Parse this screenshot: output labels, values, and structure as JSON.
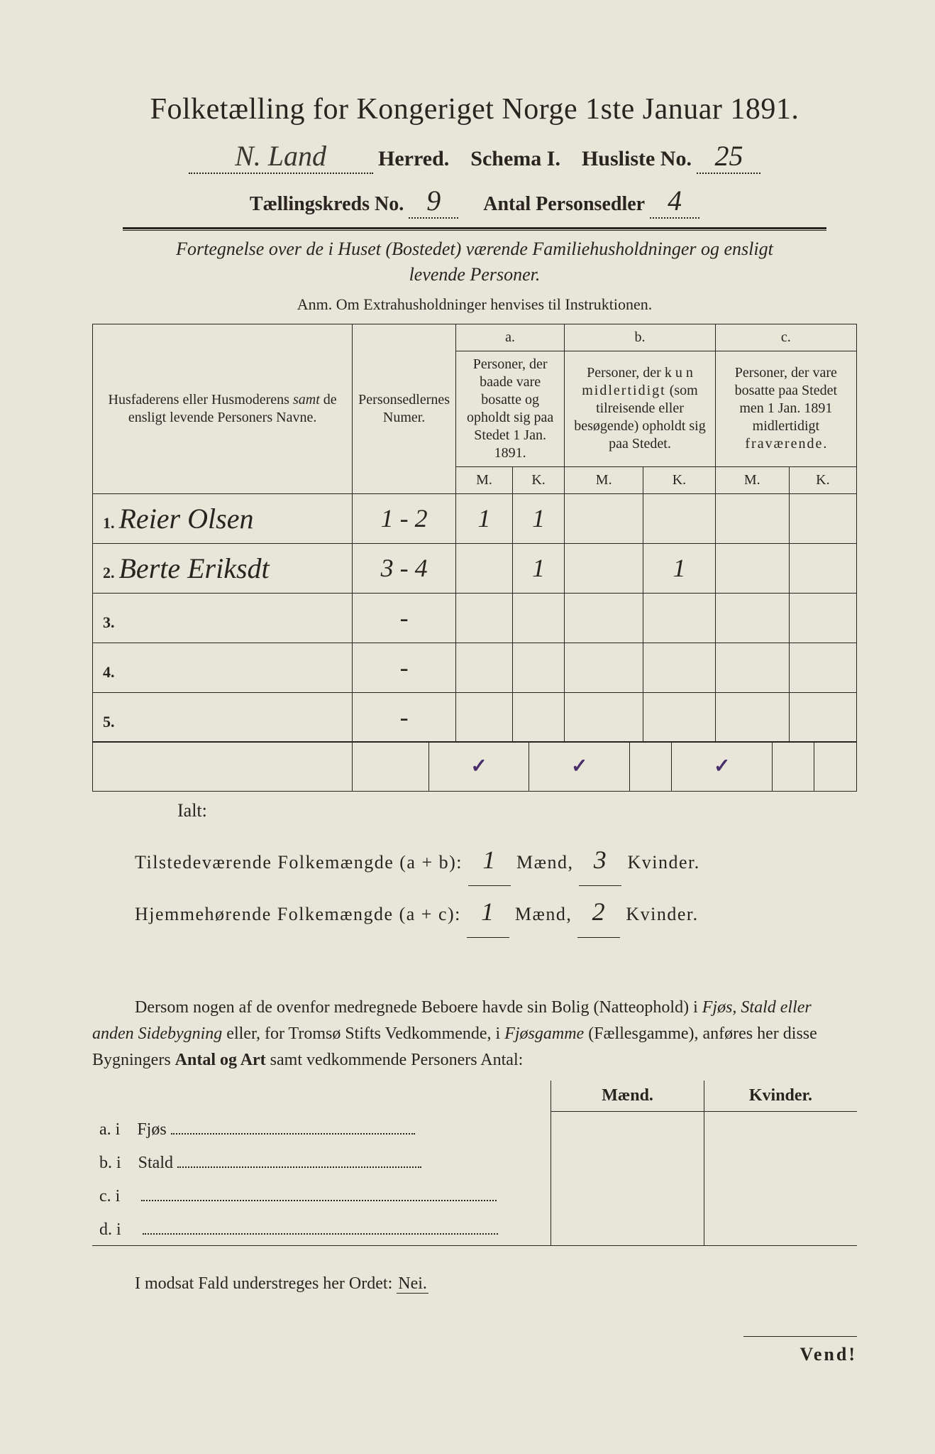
{
  "header": {
    "title": "Folketælling for Kongeriget Norge 1ste Januar 1891.",
    "herred_value": "N. Land",
    "herred_label": "Herred.",
    "schema_label": "Schema I.",
    "husliste_label": "Husliste No.",
    "husliste_no": "25",
    "kreds_label": "Tællingskreds No.",
    "kreds_no": "9",
    "antal_label": "Antal Personsedler",
    "antal_value": "4"
  },
  "subtitle": {
    "line1": "Fortegnelse over de i Huset (Bostedet) værende Familiehusholdninger og ensligt",
    "line2": "levende Personer.",
    "anm": "Anm. Om Extrahusholdninger henvises til Instruktionen."
  },
  "table": {
    "col_names": "Husfaderens eller Husmoderens samt de ensligt levende Personers Navne.",
    "col_numer": "Personsedlernes Numer.",
    "col_a_label": "a.",
    "col_a_text": "Personer, der baade vare bosatte og opholdt sig paa Stedet 1 Jan. 1891.",
    "col_b_label": "b.",
    "col_b_text": "Personer, der kun midlertidigt (som tilreisende eller besøgende) opholdt sig paa Stedet.",
    "col_c_label": "c.",
    "col_c_text": "Personer, der vare bosatte paa Stedet men 1 Jan. 1891 midlertidigt fraværende.",
    "m": "M.",
    "k": "K.",
    "rows": [
      {
        "idx": "1.",
        "name": "Reier Olsen",
        "numer": "1 - 2",
        "a_m": "1",
        "a_k": "1",
        "b_m": "",
        "b_k": "",
        "c_m": "",
        "c_k": ""
      },
      {
        "idx": "2.",
        "name": "Berte Eriksdt",
        "numer": "3 - 4",
        "a_m": "",
        "a_k": "1",
        "b_m": "",
        "b_k": "1",
        "c_m": "",
        "c_k": ""
      },
      {
        "idx": "3.",
        "name": "",
        "numer": "-",
        "a_m": "",
        "a_k": "",
        "b_m": "",
        "b_k": "",
        "c_m": "",
        "c_k": ""
      },
      {
        "idx": "4.",
        "name": "",
        "numer": "-",
        "a_m": "",
        "a_k": "",
        "b_m": "",
        "b_k": "",
        "c_m": "",
        "c_k": ""
      },
      {
        "idx": "5.",
        "name": "",
        "numer": "-",
        "a_m": "",
        "a_k": "",
        "b_m": "",
        "b_k": "",
        "c_m": "",
        "c_k": ""
      }
    ],
    "ticks": {
      "a_m": "✓",
      "a_k": "✓",
      "b_k": "✓"
    }
  },
  "totals": {
    "ialt": "Ialt:",
    "line1_label": "Tilstedeværende Folkemængde (a + b):",
    "line1_m": "1",
    "line1_k": "3",
    "line2_label": "Hjemmehørende Folkemængde (a + c):",
    "line2_m": "1",
    "line2_k": "2",
    "maend": "Mænd,",
    "kvinder": "Kvinder."
  },
  "para": "Dersom nogen af de ovenfor medregnede Beboere havde sin Bolig (Natteophold) i Fjøs, Stald eller anden Sidebygning eller, for Tromsø Stifts Vedkommende, i Fjøsgamme (Fællesgamme), anføres her disse Bygningers Antal og Art samt vedkommende Personers Antal:",
  "side": {
    "maend": "Mænd.",
    "kvinder": "Kvinder.",
    "rows": [
      {
        "label": "a.  i",
        "place": "Fjøs"
      },
      {
        "label": "b.  i",
        "place": "Stald"
      },
      {
        "label": "c.  i",
        "place": ""
      },
      {
        "label": "d.  i",
        "place": ""
      }
    ]
  },
  "nei": {
    "text": "I modsat Fald understreges her Ordet:",
    "word": "Nei."
  },
  "vend": "Vend!",
  "colors": {
    "paper": "#e8e6d9",
    "ink": "#2a2420",
    "tick": "#4a2d6b"
  }
}
